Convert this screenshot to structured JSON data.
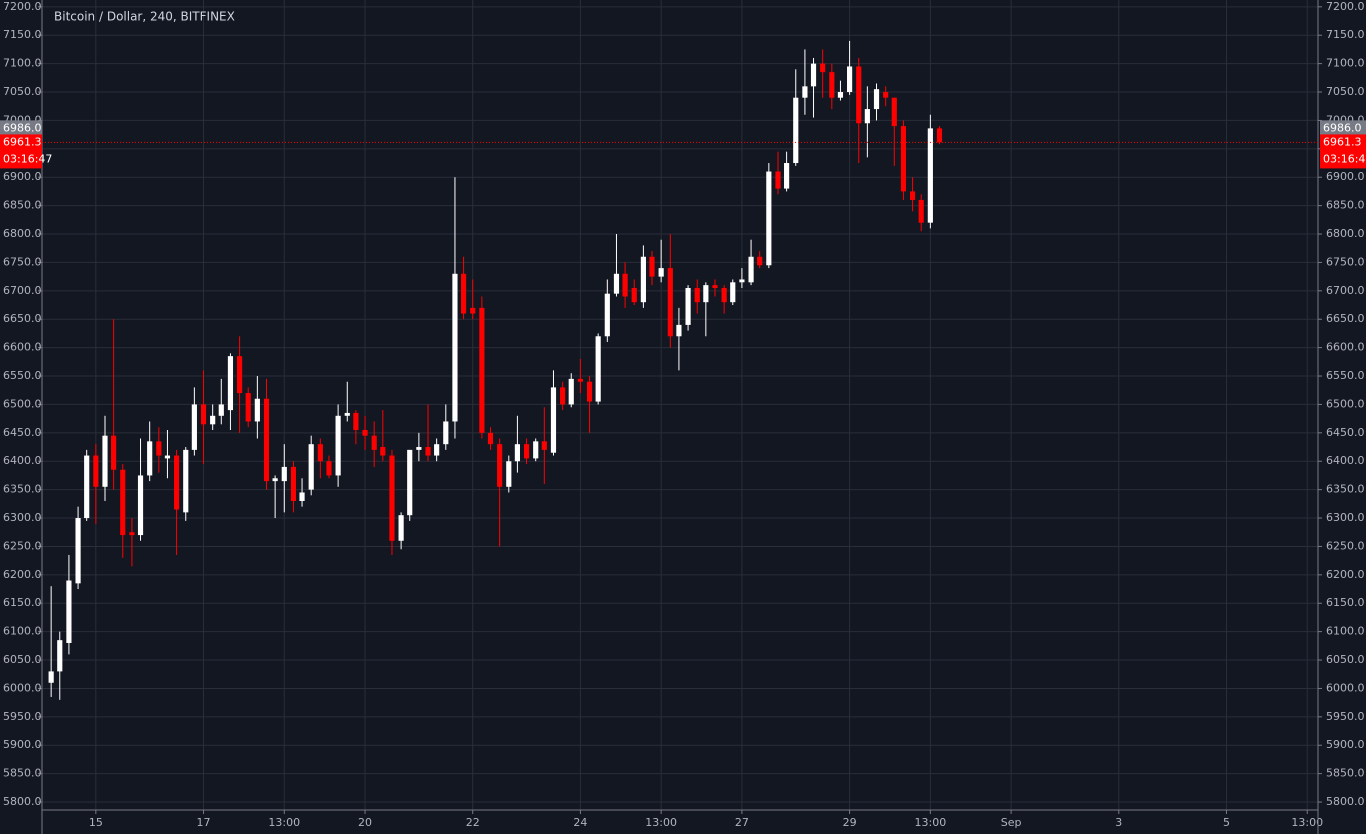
{
  "chart_data": {
    "type": "candlestick",
    "title": "Bitcoin / Dollar, 240, BITFINEX",
    "up_color": "#ffffff",
    "down_color": "#ff0000",
    "grid": true,
    "x": [
      14.17,
      14.33,
      14.5,
      14.67,
      14.83,
      15,
      15.17,
      15.33,
      15.5,
      15.67,
      15.83,
      16,
      16.17,
      16.33,
      16.5,
      16.67,
      16.83,
      17,
      17.17,
      17.33,
      17.5,
      17.67,
      17.83,
      18,
      18.17,
      18.33,
      18.5,
      18.67,
      18.83,
      19,
      19.17,
      19.33,
      19.5,
      19.67,
      19.83,
      20,
      20.17,
      20.33,
      20.5,
      20.67,
      20.83,
      21,
      21.17,
      21.33,
      21.5,
      21.67,
      21.83,
      22,
      22.17,
      22.33,
      22.5,
      22.67,
      22.83,
      23,
      23.17,
      23.33,
      23.5,
      23.67,
      23.83,
      24,
      24.17,
      24.33,
      24.5,
      24.67,
      24.83,
      25,
      25.17,
      25.33,
      25.5,
      25.67,
      25.83,
      26,
      26.17,
      26.33,
      26.5,
      26.67,
      26.83,
      27,
      27.17,
      27.33,
      27.5,
      27.67,
      27.83,
      28,
      28.17,
      28.33,
      28.5,
      28.67,
      28.83,
      29,
      29.17,
      29.33,
      29.5,
      29.67,
      29.83,
      30,
      30.17,
      30.33,
      30.5,
      30.67
    ],
    "open": [
      6010,
      6030,
      6080,
      6185,
      6300,
      6410,
      6355,
      6445,
      6385,
      6275,
      6270,
      6375,
      6435,
      6405,
      6410,
      6310,
      6420,
      6500,
      6465,
      6480,
      6490,
      6585,
      6520,
      6470,
      6510,
      6365,
      6365,
      6390,
      6330,
      6350,
      6430,
      6400,
      6375,
      6480,
      6485,
      6455,
      6445,
      6425,
      6410,
      6260,
      6305,
      6420,
      6425,
      6410,
      6430,
      6470,
      6730,
      6670,
      6670,
      6450,
      6430,
      6355,
      6400,
      6430,
      6405,
      6435,
      6415,
      6530,
      6500,
      6545,
      6540,
      6505,
      6620,
      6695,
      6730,
      6705,
      6680,
      6760,
      6725,
      6740,
      6620,
      6640,
      6705,
      6680,
      6710,
      6705,
      6680,
      6715,
      6715,
      6760,
      6745,
      6910,
      6880,
      6925,
      7040,
      7060,
      7100,
      7085,
      7040,
      7050,
      7095,
      6995,
      7020,
      7050,
      7040,
      6990,
      6875,
      6860,
      6820,
      6986
    ],
    "high": [
      6180,
      6100,
      6235,
      6320,
      6420,
      6430,
      6480,
      6650,
      6395,
      6300,
      6440,
      6470,
      6460,
      6455,
      6420,
      6425,
      6530,
      6560,
      6500,
      6545,
      6590,
      6620,
      6530,
      6550,
      6545,
      6375,
      6430,
      6400,
      6370,
      6445,
      6440,
      6410,
      6500,
      6540,
      6490,
      6480,
      6470,
      6490,
      6420,
      6310,
      6420,
      6450,
      6500,
      6440,
      6500,
      6900,
      6760,
      6720,
      6690,
      6460,
      6440,
      6410,
      6480,
      6440,
      6440,
      6495,
      6560,
      6540,
      6555,
      6580,
      6550,
      6625,
      6720,
      6800,
      6750,
      6720,
      6780,
      6770,
      6790,
      6800,
      6670,
      6710,
      6720,
      6715,
      6720,
      6710,
      6720,
      6740,
      6790,
      6770,
      6925,
      6945,
      6945,
      7090,
      7125,
      7110,
      7125,
      7100,
      7070,
      7140,
      7110,
      7060,
      7065,
      7060,
      7040,
      7000,
      6900,
      6870,
      7010,
      6990
    ],
    "low": [
      5985,
      5980,
      6060,
      6175,
      6295,
      6290,
      6330,
      6350,
      6230,
      6215,
      6260,
      6365,
      6380,
      6370,
      6235,
      6295,
      6410,
      6395,
      6455,
      6465,
      6455,
      6450,
      6460,
      6440,
      6350,
      6300,
      6310,
      6310,
      6320,
      6340,
      6370,
      6370,
      6355,
      6470,
      6430,
      6420,
      6390,
      6400,
      6235,
      6245,
      6295,
      6400,
      6400,
      6400,
      6420,
      6440,
      6650,
      6650,
      6440,
      6420,
      6250,
      6345,
      6380,
      6395,
      6400,
      6360,
      6410,
      6490,
      6495,
      6520,
      6450,
      6500,
      6610,
      6690,
      6670,
      6675,
      6670,
      6710,
      6715,
      6600,
      6560,
      6630,
      6660,
      6620,
      6690,
      6660,
      6675,
      6705,
      6710,
      6740,
      6740,
      6870,
      6875,
      6920,
      7010,
      7005,
      7040,
      7020,
      7035,
      7045,
      6925,
      6935,
      7000,
      7025,
      6920,
      6860,
      6840,
      6805,
      6810,
      6958
    ],
    "close": [
      6030,
      6085,
      6190,
      6300,
      6410,
      6355,
      6445,
      6385,
      6270,
      6270,
      6375,
      6435,
      6410,
      6410,
      6315,
      6420,
      6500,
      6465,
      6480,
      6500,
      6585,
      6520,
      6470,
      6510,
      6365,
      6370,
      6390,
      6330,
      6345,
      6430,
      6400,
      6375,
      6480,
      6485,
      6455,
      6445,
      6420,
      6410,
      6260,
      6305,
      6420,
      6425,
      6410,
      6430,
      6470,
      6730,
      6660,
      6660,
      6450,
      6430,
      6355,
      6400,
      6430,
      6405,
      6435,
      6420,
      6530,
      6500,
      6545,
      6540,
      6505,
      6620,
      6695,
      6730,
      6690,
      6680,
      6760,
      6725,
      6740,
      6620,
      6640,
      6705,
      6680,
      6710,
      6705,
      6680,
      6715,
      6720,
      6760,
      6745,
      6910,
      6880,
      6925,
      7040,
      7060,
      7100,
      7085,
      7040,
      7050,
      7095,
      6995,
      7020,
      7055,
      7040,
      6990,
      6875,
      6860,
      6820,
      6986,
      6961.3
    ],
    "xlim": [
      14,
      37.7
    ],
    "xticks": [
      15,
      17,
      {
        "value": 18.5,
        "label": "13:00"
      },
      20,
      22,
      24,
      {
        "value": 25.5,
        "label": "13:00"
      },
      27,
      29,
      {
        "value": 30.5,
        "label": "13:00"
      },
      {
        "value": 32,
        "label": "Sep"
      },
      {
        "value": 34,
        "label": "3"
      },
      {
        "value": 36,
        "label": "5"
      },
      {
        "value": 37.5,
        "label": "13:00"
      }
    ],
    "ylim": [
      5786,
      7212
    ],
    "yticks": [
      {
        "value": 5800,
        "label": "5800.0"
      },
      {
        "value": 5850,
        "label": "5850.0"
      },
      {
        "value": 5900,
        "label": "5900.0"
      },
      {
        "value": 5950,
        "label": "5950.0"
      },
      {
        "value": 6000,
        "label": "6000.0"
      },
      {
        "value": 6050,
        "label": "6050.0"
      },
      {
        "value": 6100,
        "label": "6100.0"
      },
      {
        "value": 6150,
        "label": "6150.0"
      },
      {
        "value": 6200,
        "label": "6200.0"
      },
      {
        "value": 6250,
        "label": "6250.0"
      },
      {
        "value": 6300,
        "label": "6300.0"
      },
      {
        "value": 6350,
        "label": "6350.0"
      },
      {
        "value": 6400,
        "label": "6400.0"
      },
      {
        "value": 6450,
        "label": "6450.0"
      },
      {
        "value": 6500,
        "label": "6500.0"
      },
      {
        "value": 6550,
        "label": "6550.0"
      },
      {
        "value": 6600,
        "label": "6600.0"
      },
      {
        "value": 6650,
        "label": "6650.0"
      },
      {
        "value": 6700,
        "label": "6700.0"
      },
      {
        "value": 6750,
        "label": "6750.0"
      },
      {
        "value": 6800,
        "label": "6800.0"
      },
      {
        "value": 6850,
        "label": "6850.0"
      },
      {
        "value": 6900,
        "label": "6900.0"
      },
      {
        "value": 6950,
        "label": "6950.0"
      },
      {
        "value": 7000,
        "label": "7000.0"
      },
      {
        "value": 7050,
        "label": "7050.0"
      },
      {
        "value": 7100,
        "label": "7100.0"
      },
      {
        "value": 7150,
        "label": "7150.0"
      },
      {
        "value": 7200,
        "label": "7200.0"
      }
    ],
    "marked_price": {
      "value": 6986,
      "label": "6986.0",
      "color": "#787b86"
    },
    "last_price": {
      "value": 6961.3,
      "color": "#ff0000"
    },
    "countdown": "03:16:47"
  }
}
